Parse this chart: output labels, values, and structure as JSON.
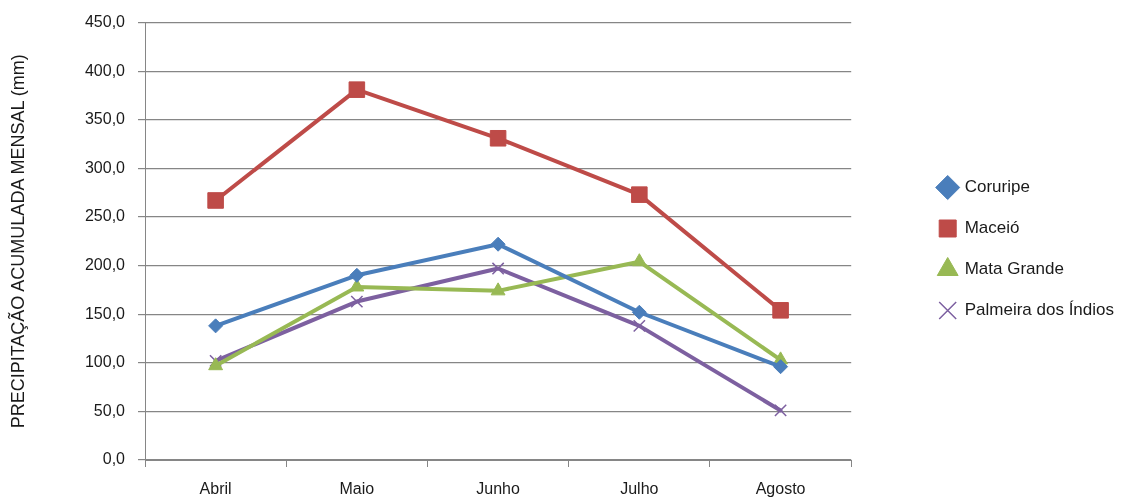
{
  "chart_data": {
    "type": "line",
    "ylabel": "PRECIPITAÇÃO ACUMULADA MENSAL (mm)",
    "categories": [
      "Abril",
      "Maio",
      "Junho",
      "Julho",
      "Agosto"
    ],
    "series": [
      {
        "name": "Coruripe",
        "color": "#4a7ebb",
        "marker": "diamond",
        "values": [
          138,
          190,
          222,
          152,
          96
        ]
      },
      {
        "name": "Maceió",
        "color": "#be4b48",
        "marker": "square",
        "values": [
          267,
          381,
          331,
          273,
          154
        ]
      },
      {
        "name": "Mata Grande",
        "color": "#98b954",
        "marker": "triangle",
        "values": [
          97,
          178,
          174,
          204,
          103
        ]
      },
      {
        "name": "Palmeira dos Índios",
        "color": "#7d60a0",
        "marker": "cross",
        "values": [
          102,
          163,
          197,
          138,
          51
        ]
      }
    ],
    "ylim": [
      0,
      450
    ],
    "yticks": [
      {
        "value": 0,
        "label": "0,0"
      },
      {
        "value": 50,
        "label": "50,0"
      },
      {
        "value": 100,
        "label": "100,0"
      },
      {
        "value": 150,
        "label": "150,0"
      },
      {
        "value": 200,
        "label": "200,0"
      },
      {
        "value": 250,
        "label": "250,0"
      },
      {
        "value": 300,
        "label": "300,0"
      },
      {
        "value": 350,
        "label": "350,0"
      },
      {
        "value": 400,
        "label": "400,0"
      },
      {
        "value": 450,
        "label": "450,0"
      }
    ],
    "grid": "y",
    "legend": "right",
    "line_style": "solid"
  }
}
